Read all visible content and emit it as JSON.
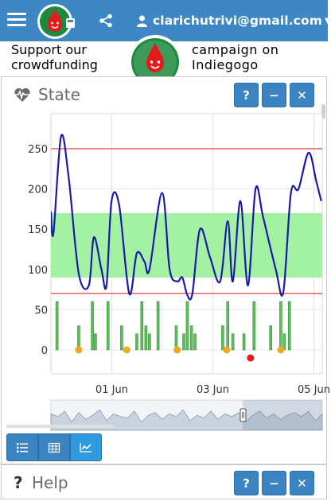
{
  "topbar": {
    "user_email": "clarichutrivi@gmail.com",
    "icons": [
      "hamburger-menu-icon",
      "app-logo",
      "share-icon",
      "user-icon",
      "caret-down-icon"
    ]
  },
  "promo": {
    "left_text_line1": "Support our",
    "left_text_line2": "crowdfunding",
    "right_text_line1": "campaign on",
    "right_text_line2": "Indiegogo"
  },
  "state_panel": {
    "title": "State",
    "icon": "heartbeat-icon",
    "buttons": {
      "help": "?",
      "minimize": "−",
      "close": "✕"
    }
  },
  "help_panel": {
    "title": "Help",
    "icon": "question-icon",
    "buttons": {
      "help": "?",
      "minimize": "−",
      "close": "✕"
    }
  },
  "view_buttons": [
    {
      "name": "list-view",
      "icon": "list-icon",
      "active": false
    },
    {
      "name": "table-view",
      "icon": "table-icon",
      "active": false
    },
    {
      "name": "chart-view",
      "icon": "line-chart-icon",
      "active": true
    }
  ],
  "colors": {
    "accent": "#3c87c4",
    "glucose_line": "#1a1aa8",
    "target_band": "#9ef09e",
    "limit_line": "#e83a3a",
    "insulin_bar": "#5cbf5c",
    "carb_dot": "#f5a623",
    "alert_dot": "#e21b1b"
  },
  "chart_data": {
    "type": "line",
    "y_ticks": [
      "0",
      "50",
      "100",
      "150",
      "200",
      "250"
    ],
    "ylim": [
      -15,
      300
    ],
    "x_ticks": [
      "01 Jun",
      "03 Jun",
      "05 Jun"
    ],
    "x_tick_positions_days": [
      1,
      3,
      5
    ],
    "xlim_days": [
      0,
      5.35
    ],
    "grid": true,
    "target_range": [
      90,
      170
    ],
    "limit_lines": [
      70,
      250
    ],
    "series": [
      {
        "kind": "glucose",
        "points": [
          [
            0.0,
            172
          ],
          [
            0.05,
            145
          ],
          [
            0.2,
            265
          ],
          [
            0.35,
            215
          ],
          [
            0.55,
            95
          ],
          [
            0.75,
            80
          ],
          [
            0.85,
            140
          ],
          [
            1.0,
            100
          ],
          [
            1.1,
            80
          ],
          [
            1.2,
            185
          ],
          [
            1.35,
            180
          ],
          [
            1.55,
            70
          ],
          [
            1.7,
            120
          ],
          [
            1.85,
            110
          ],
          [
            1.95,
            100
          ],
          [
            2.2,
            195
          ],
          [
            2.35,
            100
          ],
          [
            2.5,
            85
          ],
          [
            2.6,
            90
          ],
          [
            2.7,
            68
          ],
          [
            2.8,
            70
          ],
          [
            2.95,
            150
          ],
          [
            3.15,
            115
          ],
          [
            3.35,
            85
          ],
          [
            3.5,
            160
          ],
          [
            3.6,
            85
          ],
          [
            3.75,
            185
          ],
          [
            3.9,
            80
          ],
          [
            4.05,
            200
          ],
          [
            4.2,
            165
          ],
          [
            4.45,
            100
          ],
          [
            4.6,
            72
          ],
          [
            4.75,
            195
          ],
          [
            4.9,
            200
          ],
          [
            5.1,
            245
          ],
          [
            5.25,
            210
          ],
          [
            5.35,
            185
          ]
        ]
      },
      {
        "kind": "insulin_bars",
        "x_days": [
          0.12,
          0.55,
          0.82,
          0.88,
          1.13,
          1.4,
          1.7,
          1.8,
          1.88,
          1.95,
          2.12,
          2.48,
          2.63,
          2.7,
          2.78,
          2.85,
          3.4,
          3.5,
          3.6,
          3.82,
          4.02,
          4.35,
          4.55,
          4.62,
          4.72
        ],
        "values": [
          60,
          30,
          60,
          20,
          60,
          30,
          20,
          60,
          30,
          20,
          60,
          30,
          20,
          60,
          30,
          20,
          30,
          60,
          20,
          20,
          60,
          30,
          60,
          20,
          60
        ]
      },
      {
        "kind": "carb_dots",
        "x_days": [
          0.55,
          1.5,
          2.5,
          3.48,
          4.55
        ],
        "value": 0
      },
      {
        "kind": "alert_dots",
        "x_days": [
          3.95
        ],
        "value": -10
      }
    ],
    "navigator": {
      "series_shape": [
        0.6,
        0.5,
        0.7,
        0.3,
        0.65,
        0.4,
        0.55,
        0.75,
        0.35,
        0.6,
        0.5,
        0.45,
        0.7,
        0.3,
        0.55,
        0.65,
        0.4,
        0.6,
        0.5,
        0.75,
        0.35,
        0.55,
        0.45,
        0.7,
        0.4,
        0.6,
        0.5,
        0.65,
        0.3,
        0.55,
        0.7,
        0.45,
        0.6,
        0.4,
        0.55,
        0.65,
        0.5,
        0.7,
        0.35,
        0.6
      ]
    }
  }
}
